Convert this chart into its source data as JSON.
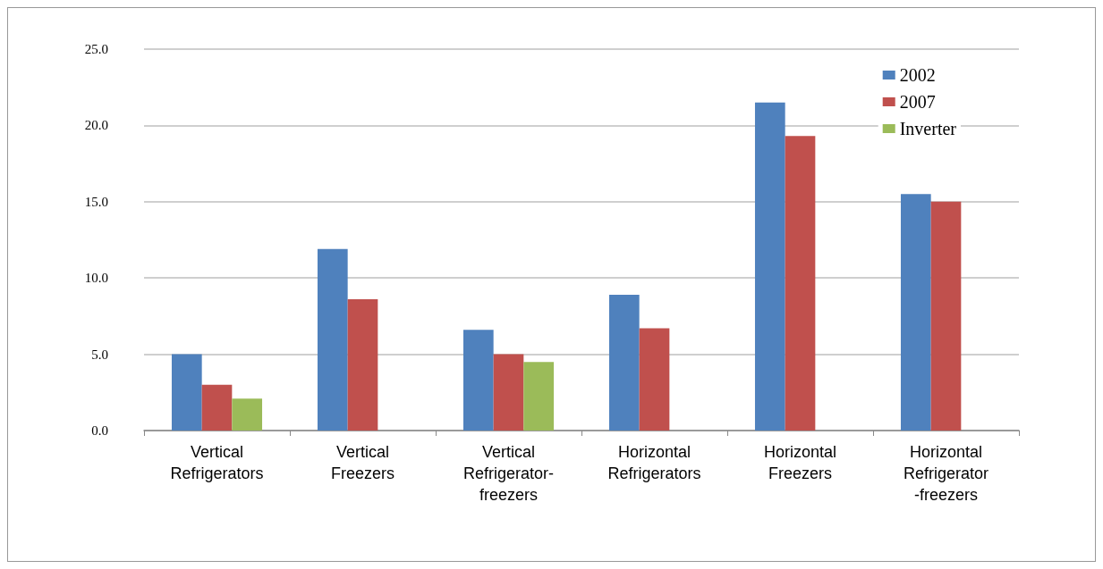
{
  "chart_data": {
    "type": "bar",
    "categories": [
      "Vertical\nRefrigerators",
      "Vertical\nFreezers",
      "Vertical\nRefrigerator-\nfreezers",
      "Horizontal\nRefrigerators",
      "Horizontal\nFreezers",
      "Horizontal\nRefrigerator\n-freezers"
    ],
    "series": [
      {
        "name": "2002",
        "color": "#4f81bd",
        "values": [
          5.0,
          11.9,
          6.6,
          8.9,
          21.5,
          15.5
        ]
      },
      {
        "name": "2007",
        "color": "#c0504d",
        "values": [
          3.0,
          8.6,
          5.0,
          6.7,
          19.3,
          15.0
        ]
      },
      {
        "name": "Inverter",
        "color": "#9bbb59",
        "values": [
          2.1,
          null,
          4.5,
          null,
          null,
          null
        ]
      }
    ],
    "ylim": [
      0,
      25
    ],
    "yticks": [
      {
        "value": 0,
        "label": "0.0"
      },
      {
        "value": 5,
        "label": "5.0"
      },
      {
        "value": 10,
        "label": "10.0"
      },
      {
        "value": 15,
        "label": "15.0"
      },
      {
        "value": 20,
        "label": "20.0"
      },
      {
        "value": 25,
        "label": "25.0"
      }
    ],
    "grid": "y",
    "legend": "top right"
  }
}
